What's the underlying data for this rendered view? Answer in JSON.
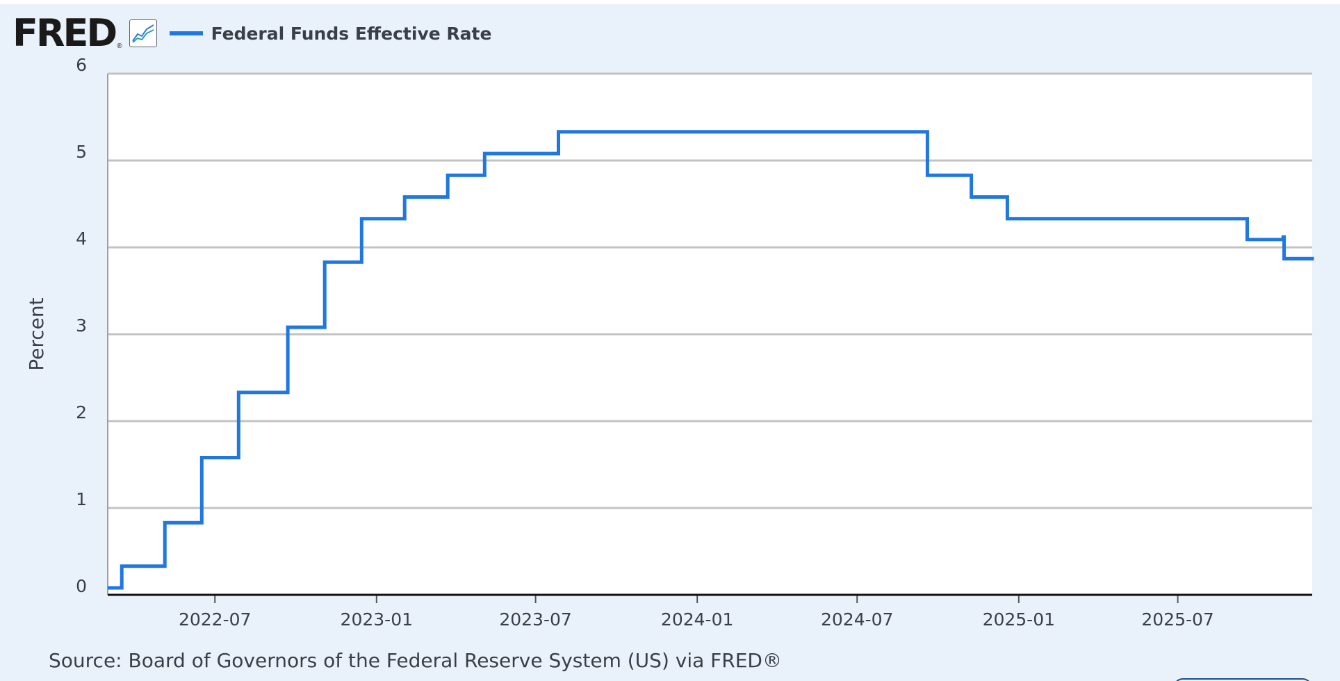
{
  "header": {
    "logo_text": "FRED",
    "logo_mark": "®",
    "icon": "line-chart-icon",
    "legend_label": "Federal Funds Effective Rate",
    "legend_color": "#1f77df"
  },
  "source_text": "Source: Board of Governors of the Federal Reserve System (US) via FRED®",
  "chart_data": {
    "type": "line",
    "title": "",
    "xlabel": "",
    "ylabel": "Percent",
    "ylim": [
      0,
      6
    ],
    "xlim": [
      "2022-03-01",
      "2025-12-01"
    ],
    "yticks": [
      0,
      1,
      2,
      3,
      4,
      5,
      6
    ],
    "xticks": [
      "2022-07",
      "2023-01",
      "2023-07",
      "2024-01",
      "2024-07",
      "2025-01",
      "2025-07"
    ],
    "grid": true,
    "legend_position": "top-left",
    "series": [
      {
        "name": "Federal Funds Effective Rate",
        "color": "#1f77df",
        "step": true,
        "points": [
          [
            "2022-03-01",
            0.08
          ],
          [
            "2022-03-17",
            0.33
          ],
          [
            "2022-05-05",
            0.83
          ],
          [
            "2022-06-16",
            1.58
          ],
          [
            "2022-07-28",
            2.33
          ],
          [
            "2022-09-22",
            3.08
          ],
          [
            "2022-11-03",
            3.83
          ],
          [
            "2022-12-15",
            4.33
          ],
          [
            "2023-02-02",
            4.58
          ],
          [
            "2023-03-23",
            4.83
          ],
          [
            "2023-05-04",
            5.08
          ],
          [
            "2023-07-27",
            5.33
          ],
          [
            "2024-09-19",
            4.83
          ],
          [
            "2024-11-08",
            4.58
          ],
          [
            "2024-12-19",
            4.33
          ],
          [
            "2025-09-18",
            4.09
          ],
          [
            "2025-10-29",
            4.12
          ],
          [
            "2025-10-30",
            3.87
          ],
          [
            "2025-12-01",
            3.89
          ]
        ]
      }
    ]
  }
}
